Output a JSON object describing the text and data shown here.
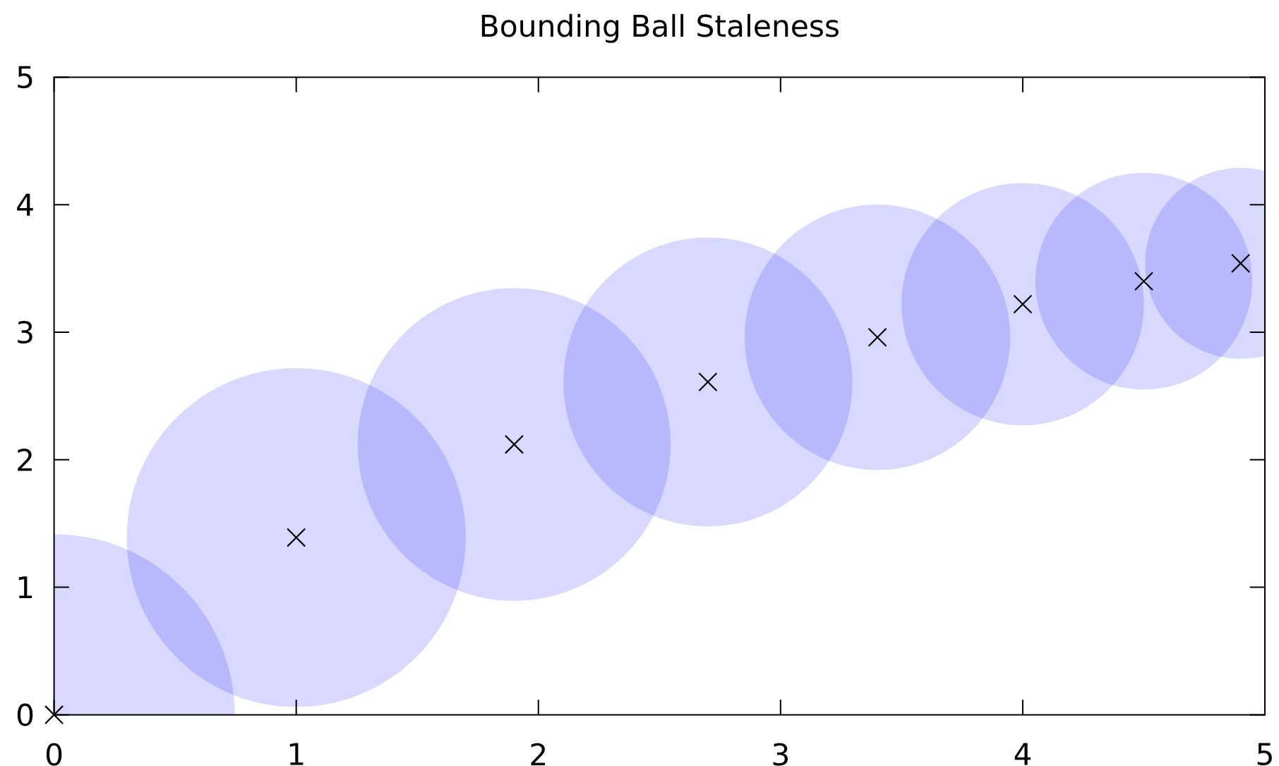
{
  "chart_data": {
    "type": "bubble",
    "title": "Bounding Ball Staleness",
    "x": [
      0,
      1,
      1.9,
      2.7,
      3.4,
      4,
      4.5,
      4.9
    ],
    "xlim": [
      0,
      5
    ],
    "ylim": [
      0,
      5
    ],
    "xticks": [
      0,
      1,
      2,
      3,
      4,
      5
    ],
    "yticks": [
      0,
      1,
      2,
      3,
      4,
      5
    ],
    "series": [
      {
        "color": "#0000ff",
        "values": [
          0,
          1.39,
          2.12,
          2.61,
          2.96,
          3.22,
          3.4,
          3.54
        ],
        "sizes": [
          1,
          0.88,
          0.75,
          0.64,
          0.54,
          0.45,
          0.36,
          0.28
        ]
      },
      {
        "type": "scatter",
        "color": "#000000",
        "marker": "cross",
        "values": [
          0,
          1.39,
          2.12,
          2.61,
          2.96,
          3.22,
          3.4,
          3.54
        ]
      }
    ]
  }
}
